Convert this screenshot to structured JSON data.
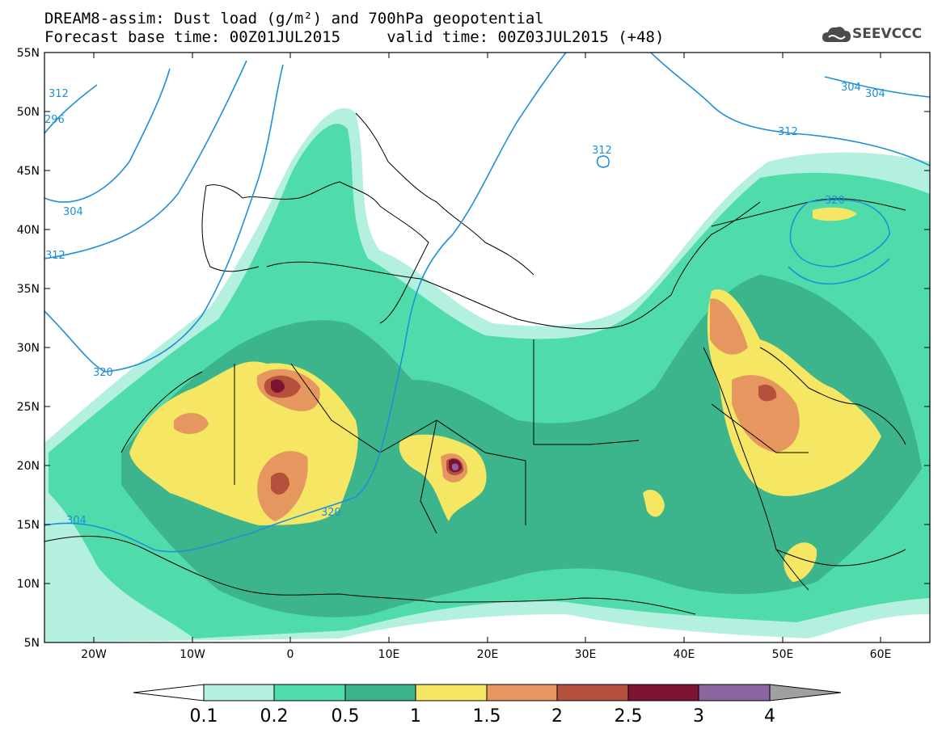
{
  "title": {
    "line1": "DREAM8-assim: Dust load (g/m²) and 700hPa geopotential",
    "line2": "Forecast base time: 00Z01JUL2015     valid time: 00Z03JUL2015 (+48)"
  },
  "logo": {
    "text": "SEEVCCC",
    "icon": "cloud-logo-icon"
  },
  "axes": {
    "lat_labels": [
      "55N",
      "50N",
      "45N",
      "40N",
      "35N",
      "30N",
      "25N",
      "20N",
      "15N",
      "10N",
      "5N"
    ],
    "lon_labels": [
      "20W",
      "10W",
      "0",
      "10E",
      "20E",
      "30E",
      "40E",
      "50E",
      "60E"
    ]
  },
  "colorbar": {
    "levels": [
      "0.1",
      "0.2",
      "0.5",
      "1",
      "1.5",
      "2",
      "2.5",
      "3",
      "4"
    ],
    "colors": [
      "#b4f0e0",
      "#50dcaa",
      "#3cb48c",
      "#f5e664",
      "#e6965f",
      "#b4503c",
      "#7a1432",
      "#8c64a0",
      "#a0a0a0"
    ]
  },
  "contour_labels": [
    "304",
    "312",
    "320",
    "312",
    "304",
    "312",
    "320",
    "320",
    "312",
    "304",
    "304",
    "296"
  ],
  "colors": {
    "contour": "#1e90d8"
  }
}
